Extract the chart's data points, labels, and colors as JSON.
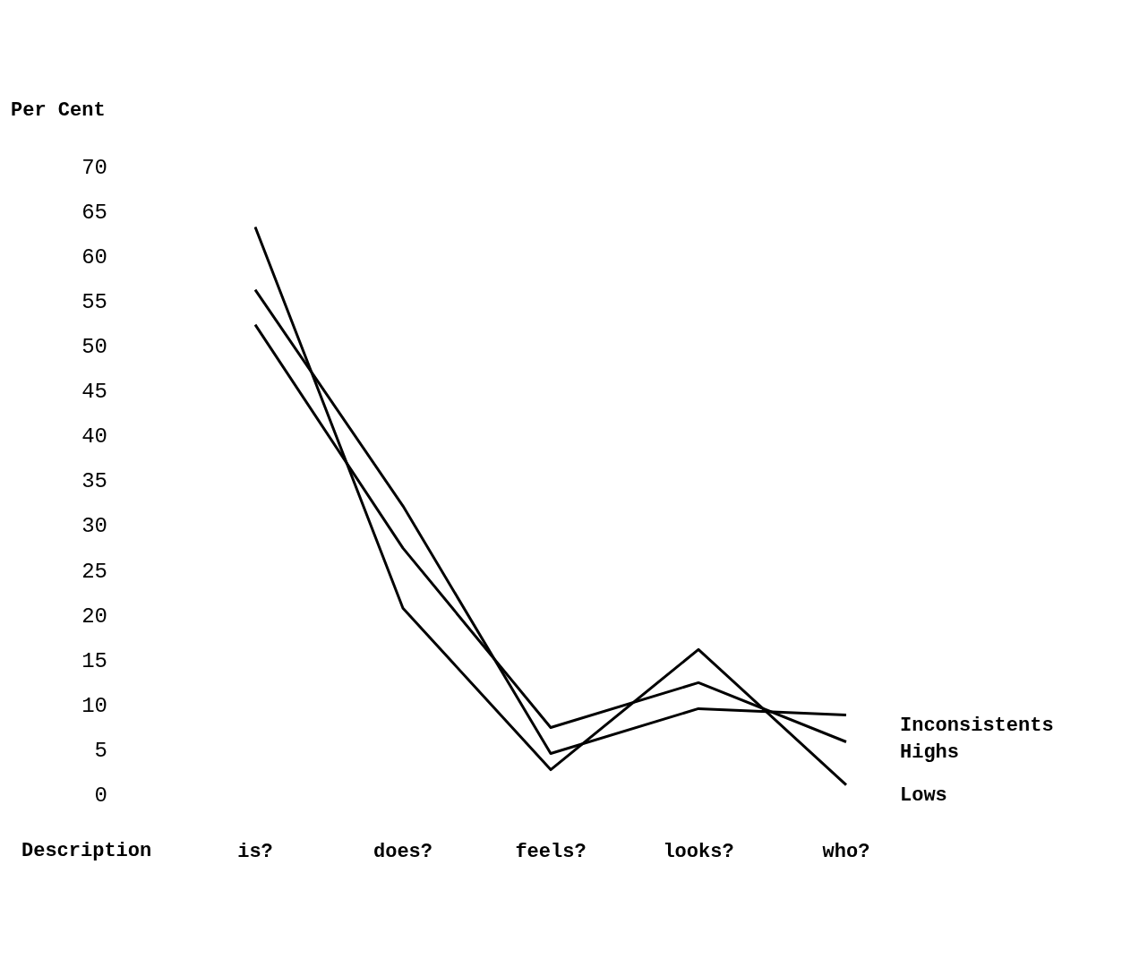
{
  "chart_data": {
    "type": "line",
    "ylabel": "Per Cent",
    "xlabel": "Description",
    "categories": [
      "is?",
      "does?",
      "feels?",
      "looks?",
      "who?"
    ],
    "series": [
      {
        "name": "Inconsistents",
        "color": "#000000",
        "values": [
          56.4,
          32.3,
          4.7,
          9.7,
          9.0
        ]
      },
      {
        "name": "Highs",
        "color": "#000000",
        "values": [
          52.5,
          27.6,
          7.6,
          12.6,
          6.0
        ]
      },
      {
        "name": "Lows",
        "color": "#000000",
        "values": [
          63.4,
          20.9,
          2.9,
          16.3,
          1.2
        ]
      }
    ],
    "ylim": [
      0,
      70
    ],
    "yticks": [
      0,
      5,
      10,
      15,
      20,
      25,
      30,
      35,
      40,
      45,
      50,
      55,
      60,
      65,
      70
    ],
    "grid": false,
    "legend": false,
    "marker": "none",
    "line_style": "solid"
  }
}
